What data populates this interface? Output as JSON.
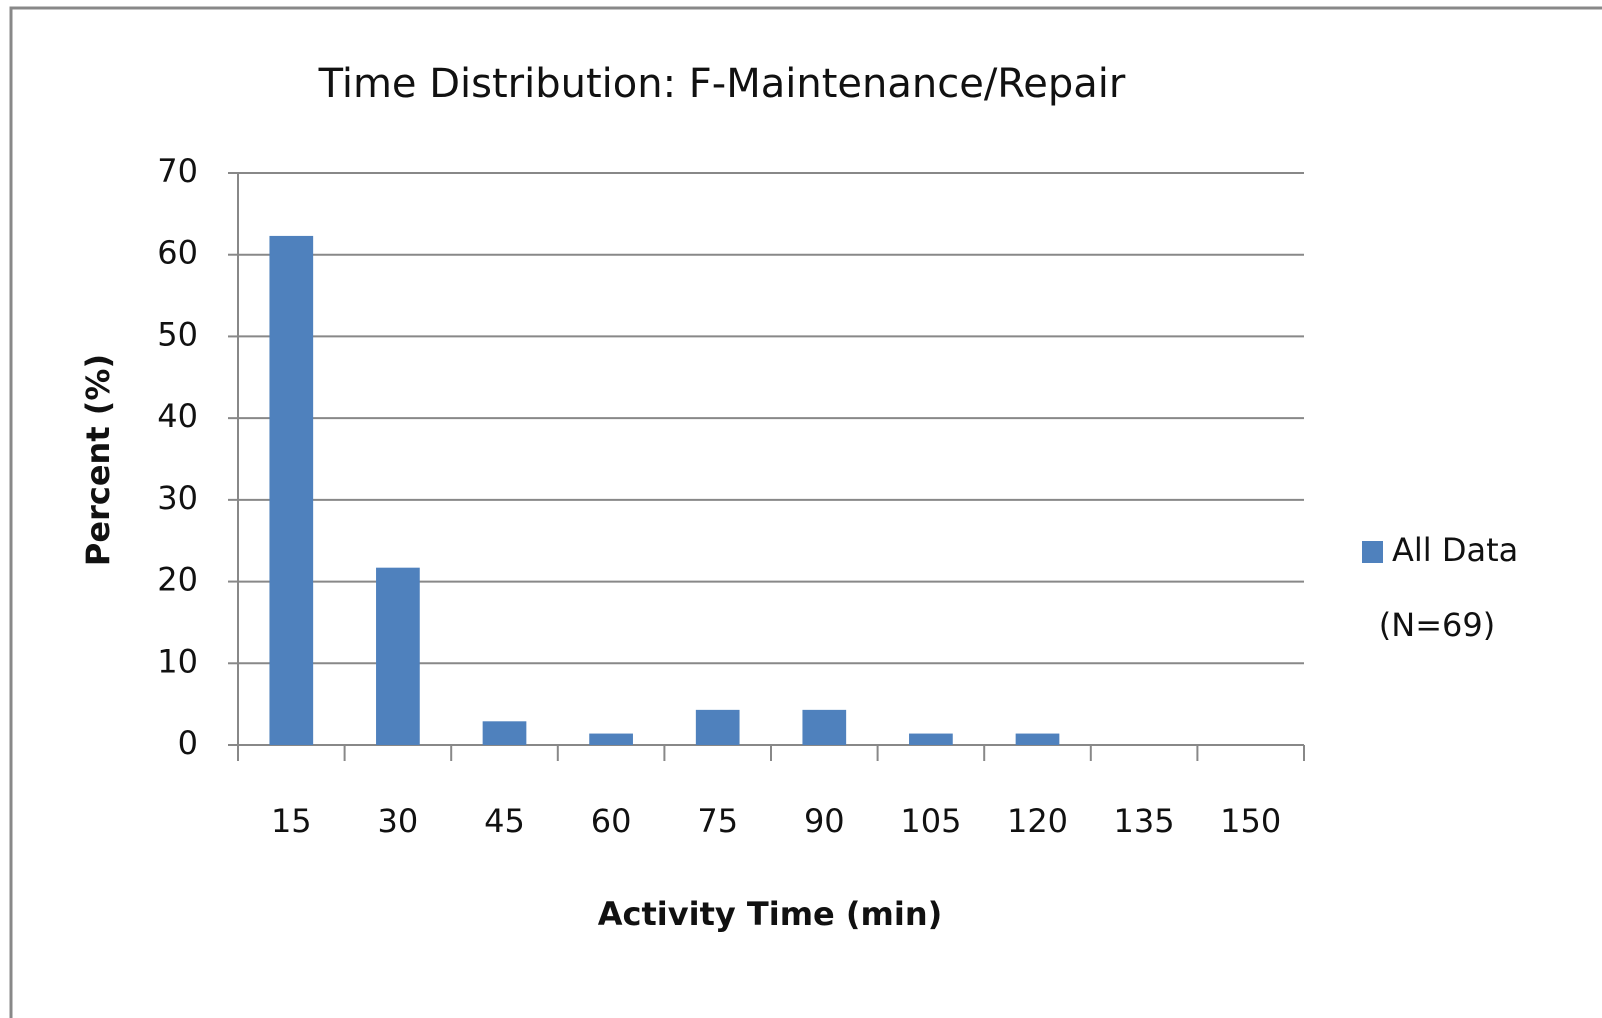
{
  "chart_data": {
    "type": "bar",
    "title": "Time Distribution: F-Maintenance/Repair",
    "x_label": "Activity Time (min)",
    "y_label": "Percent (%)",
    "categories": [
      "15",
      "30",
      "45",
      "60",
      "75",
      "90",
      "105",
      "120",
      "135",
      "150"
    ],
    "series": [
      {
        "name": "All Data",
        "color": "#4f81bd",
        "values": [
          62.3,
          21.7,
          2.9,
          1.4,
          4.3,
          4.3,
          1.4,
          1.4,
          0,
          0
        ]
      }
    ],
    "legend_note": "(N=69)",
    "legend": "right",
    "ylim": [
      0,
      70
    ],
    "yticks": [
      0,
      10,
      20,
      30,
      40,
      50,
      60,
      70
    ],
    "grid": true
  }
}
